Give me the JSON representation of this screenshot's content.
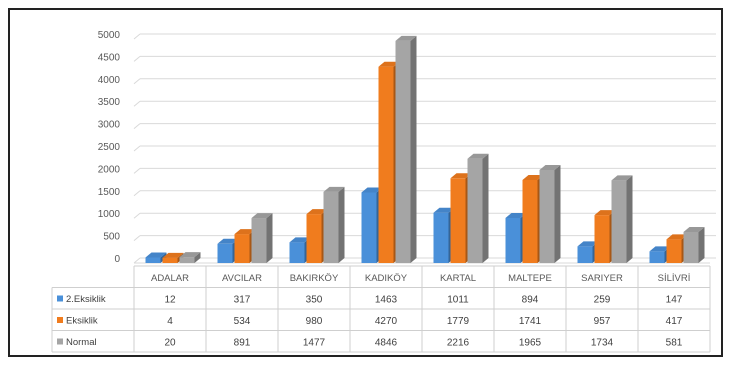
{
  "chart_data": {
    "type": "bar",
    "categories": [
      "ADALAR",
      "AVCILAR",
      "BAKIRKÖY",
      "KADIKÖY",
      "KARTAL",
      "MALTEPE",
      "SARIYER",
      "SİLİVRİ"
    ],
    "series": [
      {
        "name": "2.Eksiklik",
        "values": [
          12,
          317,
          350,
          1463,
          1011,
          894,
          259,
          147
        ]
      },
      {
        "name": "Eksiklik",
        "values": [
          4,
          534,
          980,
          4270,
          1779,
          1741,
          957,
          417
        ]
      },
      {
        "name": "Normal",
        "values": [
          20,
          891,
          1477,
          4846,
          2216,
          1965,
          1734,
          581
        ]
      }
    ],
    "yticks": [
      0,
      500,
      1000,
      1500,
      2000,
      2500,
      3000,
      3500,
      4000,
      4500,
      5000
    ],
    "ylim": [
      0,
      5000
    ],
    "grid": true,
    "legend": "data-table",
    "colors": [
      "#4a90d9",
      "#f07c1e",
      "#a5a5a5"
    ]
  }
}
